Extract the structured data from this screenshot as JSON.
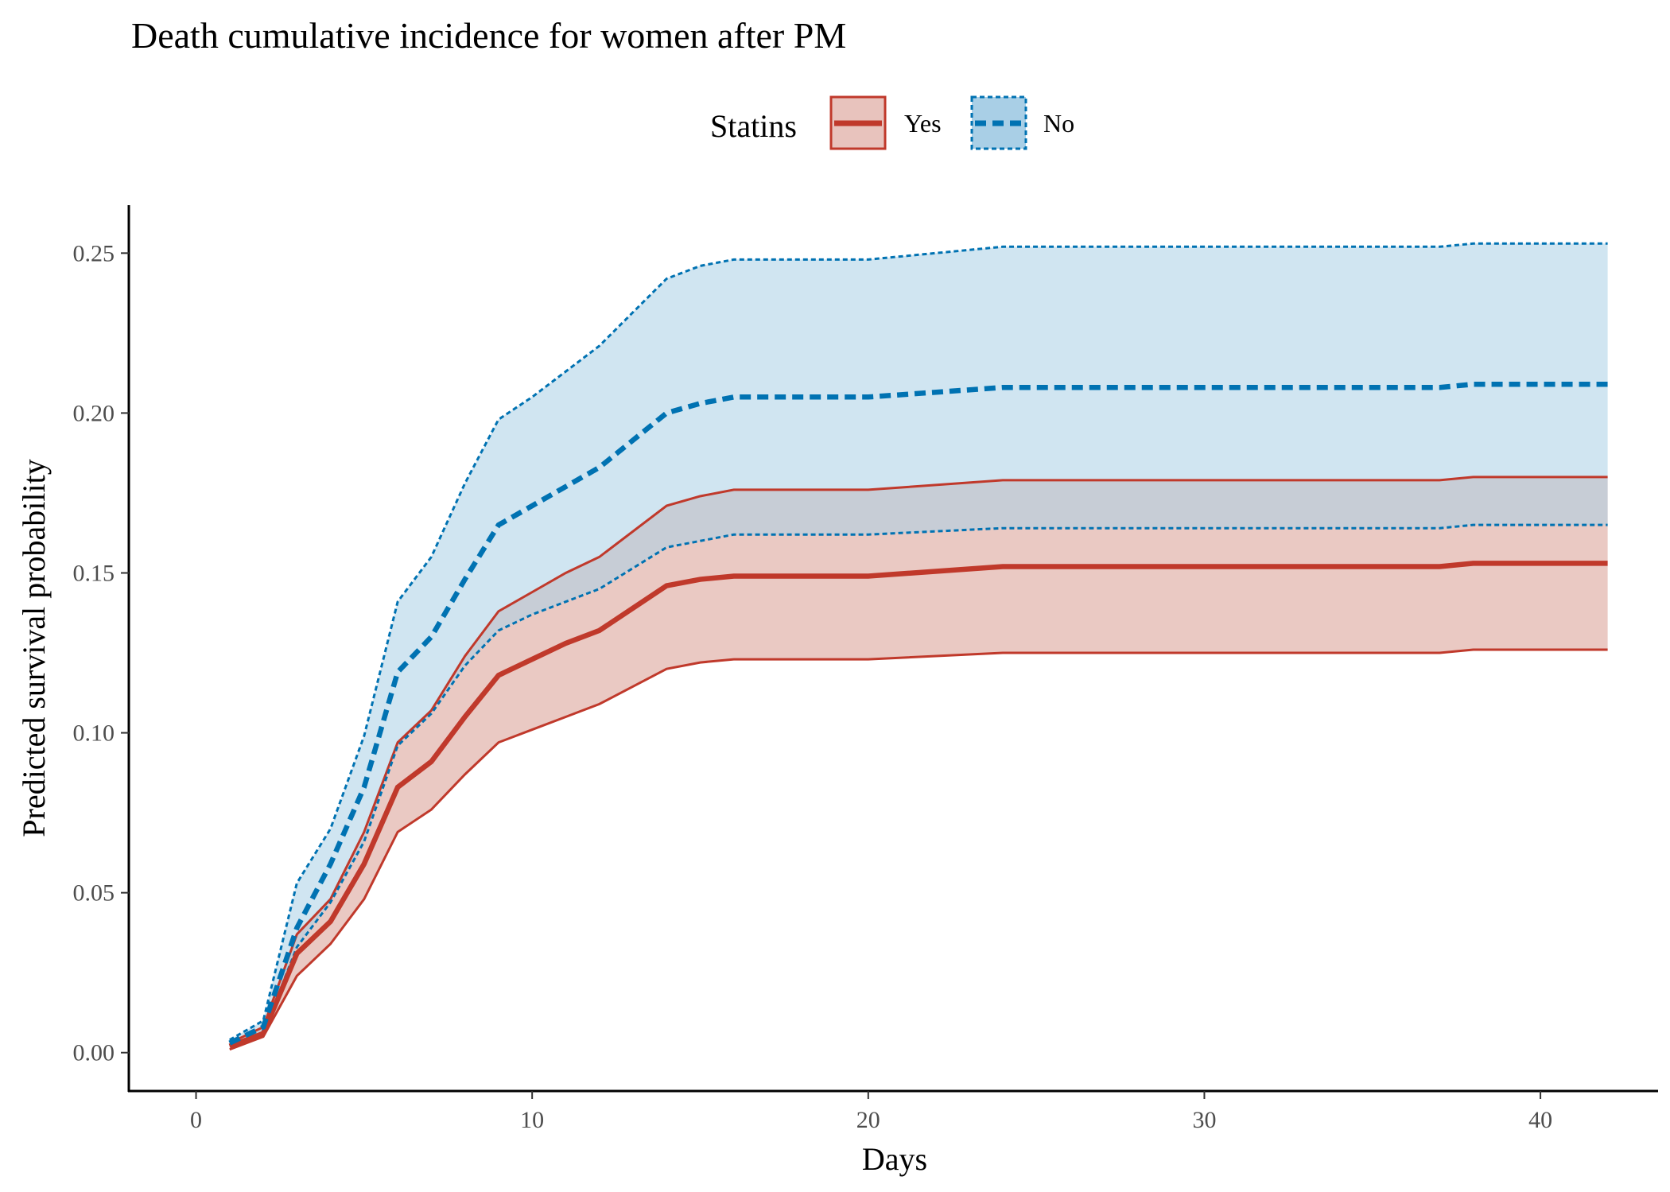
{
  "chart_data": {
    "type": "area",
    "title": "Death cumulative incidence for women after PM",
    "xlabel": "Days",
    "ylabel": "Predicted survival probability",
    "xlim": [
      -2,
      43.5
    ],
    "ylim": [
      -0.012,
      0.265
    ],
    "xticks": [
      0,
      10,
      20,
      30,
      40
    ],
    "xtick_labels": [
      "0",
      "10",
      "20",
      "30",
      "40"
    ],
    "yticks": [
      0.0,
      0.05,
      0.1,
      0.15,
      0.2,
      0.25
    ],
    "ytick_labels": [
      "0.00",
      "0.05",
      "0.10",
      "0.15",
      "0.20",
      "0.25"
    ],
    "grid": false,
    "legend": {
      "title": "Statins",
      "placement": "top"
    },
    "x": [
      1,
      2,
      3,
      4,
      5,
      6,
      7,
      8,
      9,
      10,
      11,
      12,
      14,
      15,
      16,
      20,
      24,
      30,
      37,
      38,
      42
    ],
    "series": [
      {
        "name": "Yes",
        "color": "#c0392b",
        "fill": "#e8c3bd",
        "line_style": "solid",
        "values": [
          0.002,
          0.006,
          0.031,
          0.041,
          0.059,
          0.083,
          0.091,
          0.105,
          0.118,
          0.123,
          0.128,
          0.132,
          0.146,
          0.148,
          0.149,
          0.149,
          0.152,
          0.152,
          0.152,
          0.153,
          0.153
        ],
        "lower": [
          0.001,
          0.005,
          0.024,
          0.034,
          0.048,
          0.069,
          0.076,
          0.087,
          0.097,
          0.101,
          0.105,
          0.109,
          0.12,
          0.122,
          0.123,
          0.123,
          0.125,
          0.125,
          0.125,
          0.126,
          0.126
        ],
        "upper": [
          0.003,
          0.008,
          0.037,
          0.048,
          0.069,
          0.097,
          0.107,
          0.124,
          0.138,
          0.144,
          0.15,
          0.155,
          0.171,
          0.174,
          0.176,
          0.176,
          0.179,
          0.179,
          0.179,
          0.18,
          0.18
        ]
      },
      {
        "name": "No",
        "color": "#0072b2",
        "fill": "#a9cfe6",
        "line_style": "dashed",
        "values": [
          0.003,
          0.008,
          0.039,
          0.059,
          0.083,
          0.119,
          0.13,
          0.148,
          0.165,
          0.171,
          0.177,
          0.183,
          0.2,
          0.203,
          0.205,
          0.205,
          0.208,
          0.208,
          0.208,
          0.209,
          0.209
        ],
        "lower": [
          0.002,
          0.006,
          0.033,
          0.047,
          0.066,
          0.096,
          0.106,
          0.121,
          0.132,
          0.137,
          0.141,
          0.145,
          0.158,
          0.16,
          0.162,
          0.162,
          0.164,
          0.164,
          0.164,
          0.165,
          0.165
        ],
        "upper": [
          0.004,
          0.01,
          0.053,
          0.07,
          0.099,
          0.141,
          0.155,
          0.178,
          0.198,
          0.205,
          0.213,
          0.221,
          0.242,
          0.246,
          0.248,
          0.248,
          0.252,
          0.252,
          0.252,
          0.253,
          0.253
        ]
      }
    ]
  }
}
